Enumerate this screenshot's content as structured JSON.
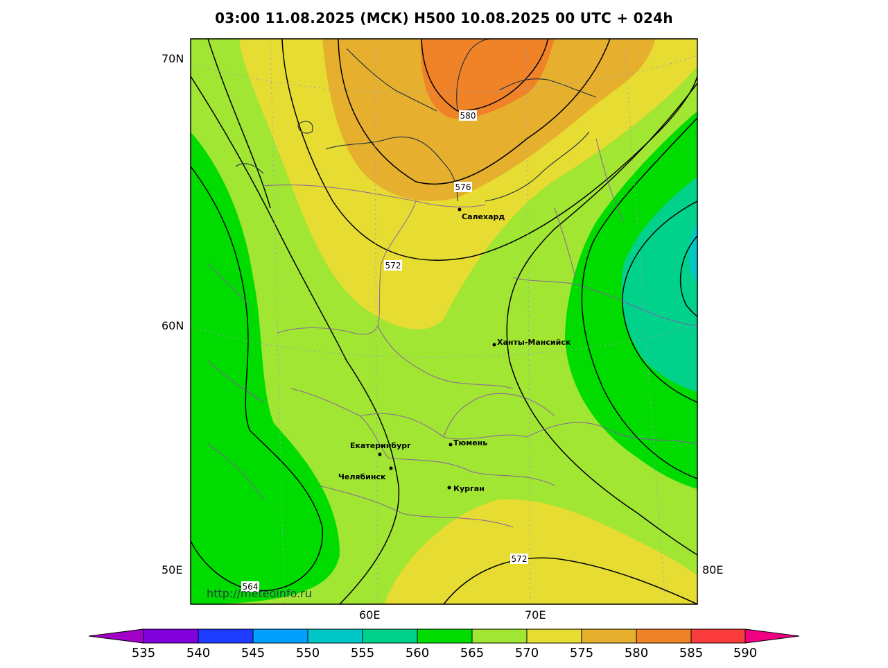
{
  "title": "03:00 11.08.2025 (МСК) H500  10.08.2025 00 UTC + 024h",
  "lat_labels": [
    "70N",
    "60N",
    "50E",
    "80E"
  ],
  "lon_labels": [
    "60E",
    "70E"
  ],
  "watermark": "http://meteoinfo.ru",
  "cities": [
    {
      "name": "Салехард"
    },
    {
      "name": "Ханты-Мансийск"
    },
    {
      "name": "Екатеринбург"
    },
    {
      "name": "Тюмень"
    },
    {
      "name": "Челябинск"
    },
    {
      "name": "Курган"
    }
  ],
  "contour_labels": [
    "580",
    "576",
    "572",
    "572",
    "564"
  ],
  "colorbar": {
    "ticks": [
      "535",
      "540",
      "545",
      "550",
      "555",
      "560",
      "565",
      "570",
      "575",
      "580",
      "585",
      "590"
    ],
    "colors": [
      "#a000c8",
      "#8200dc",
      "#1e3cff",
      "#00a0ff",
      "#00c8c8",
      "#00d28c",
      "#00dc00",
      "#a0e632",
      "#e6dc32",
      "#e6af2d",
      "#f08228",
      "#fa3c3c",
      "#f00082"
    ]
  }
}
